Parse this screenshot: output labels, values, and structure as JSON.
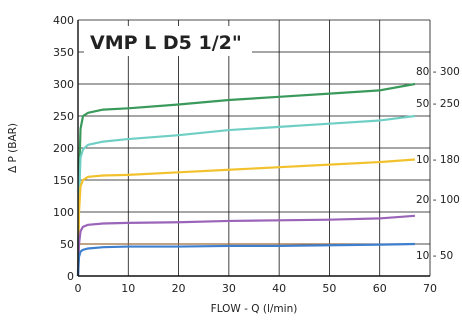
{
  "chart_data": {
    "type": "line",
    "title": "VMP L D5 1/2\"",
    "xlabel": "FLOW - Q (l/min)",
    "ylabel": "Δ  P (BAR)",
    "xlim": [
      0,
      70
    ],
    "ylim": [
      0,
      400
    ],
    "x_ticks": [
      0,
      10,
      20,
      30,
      40,
      50,
      60,
      70
    ],
    "y_ticks": [
      0,
      50,
      100,
      150,
      200,
      250,
      300,
      350,
      400
    ],
    "grid": true,
    "series": [
      {
        "name": "80 - 300",
        "color": "#3a9a5b",
        "points": [
          [
            0,
            0
          ],
          [
            0.2,
            150
          ],
          [
            0.5,
            230
          ],
          [
            1,
            250
          ],
          [
            2,
            255
          ],
          [
            5,
            260
          ],
          [
            10,
            262
          ],
          [
            20,
            268
          ],
          [
            30,
            275
          ],
          [
            40,
            280
          ],
          [
            50,
            285
          ],
          [
            60,
            290
          ],
          [
            67,
            300
          ]
        ]
      },
      {
        "name": "50 - 250",
        "color": "#6fcfc4",
        "points": [
          [
            0,
            0
          ],
          [
            0.2,
            120
          ],
          [
            0.5,
            185
          ],
          [
            1,
            198
          ],
          [
            2,
            205
          ],
          [
            5,
            210
          ],
          [
            10,
            214
          ],
          [
            20,
            220
          ],
          [
            30,
            228
          ],
          [
            40,
            233
          ],
          [
            50,
            238
          ],
          [
            60,
            243
          ],
          [
            67,
            250
          ]
        ]
      },
      {
        "name": "10 - 180",
        "color": "#f2c22e",
        "points": [
          [
            0,
            0
          ],
          [
            0.2,
            100
          ],
          [
            0.5,
            140
          ],
          [
            1,
            150
          ],
          [
            2,
            155
          ],
          [
            5,
            157
          ],
          [
            10,
            158
          ],
          [
            20,
            162
          ],
          [
            30,
            166
          ],
          [
            40,
            170
          ],
          [
            50,
            174
          ],
          [
            60,
            178
          ],
          [
            67,
            182
          ]
        ]
      },
      {
        "name": "20 - 100",
        "color": "#9a64b8",
        "points": [
          [
            0,
            0
          ],
          [
            0.2,
            50
          ],
          [
            0.5,
            70
          ],
          [
            1,
            77
          ],
          [
            2,
            80
          ],
          [
            5,
            82
          ],
          [
            10,
            83
          ],
          [
            20,
            84
          ],
          [
            30,
            86
          ],
          [
            40,
            87
          ],
          [
            50,
            88
          ],
          [
            60,
            90
          ],
          [
            67,
            94
          ]
        ]
      },
      {
        "name": "10 - 50",
        "color": "#3f7fd0",
        "points": [
          [
            0,
            0
          ],
          [
            0.2,
            30
          ],
          [
            0.5,
            38
          ],
          [
            1,
            41
          ],
          [
            2,
            43
          ],
          [
            5,
            45
          ],
          [
            10,
            46
          ],
          [
            20,
            46
          ],
          [
            30,
            47
          ],
          [
            40,
            47
          ],
          [
            50,
            48
          ],
          [
            60,
            49
          ],
          [
            67,
            50
          ]
        ]
      }
    ],
    "extra_lines": [
      {
        "color": "#9a6a3a",
        "points": [
          [
            0,
            50
          ],
          [
            67,
            50
          ]
        ]
      }
    ],
    "right_labels": [
      {
        "text": "80 - 300",
        "y": 320
      },
      {
        "text": "50 - 250",
        "y": 270
      },
      {
        "text": "10 - 180",
        "y": 183
      },
      {
        "text": "20 - 100",
        "y": 120
      },
      {
        "text": "10 - 50",
        "y": 33
      }
    ]
  }
}
